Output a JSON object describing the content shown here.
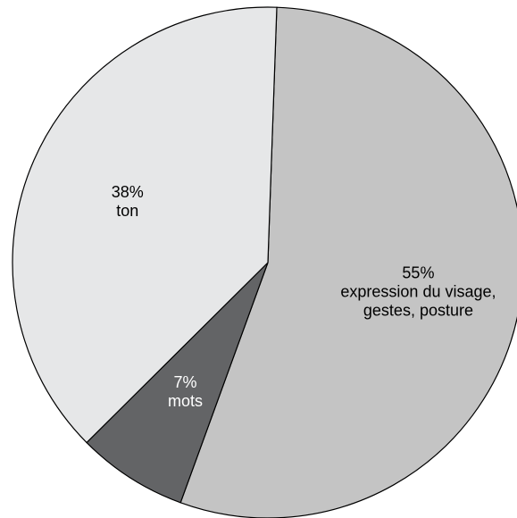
{
  "chart_data": {
    "type": "pie",
    "title": "",
    "slices": [
      {
        "label": "expression du visage, gestes, posture",
        "value": 55,
        "percent_text": "55%",
        "label_lines": [
          "expression du visage,",
          "gestes, posture"
        ],
        "color": "#c4c4c4",
        "label_color": "#000000"
      },
      {
        "label": "mots",
        "value": 7,
        "percent_text": "7%",
        "label_lines": [
          "mots"
        ],
        "color": "#636466",
        "label_color": "#ffffff"
      },
      {
        "label": "ton",
        "value": 38,
        "percent_text": "38%",
        "label_lines": [
          "ton"
        ],
        "color": "#e6e7e8",
        "label_color": "#000000"
      }
    ],
    "legend": "none",
    "border_color": "#000000"
  }
}
